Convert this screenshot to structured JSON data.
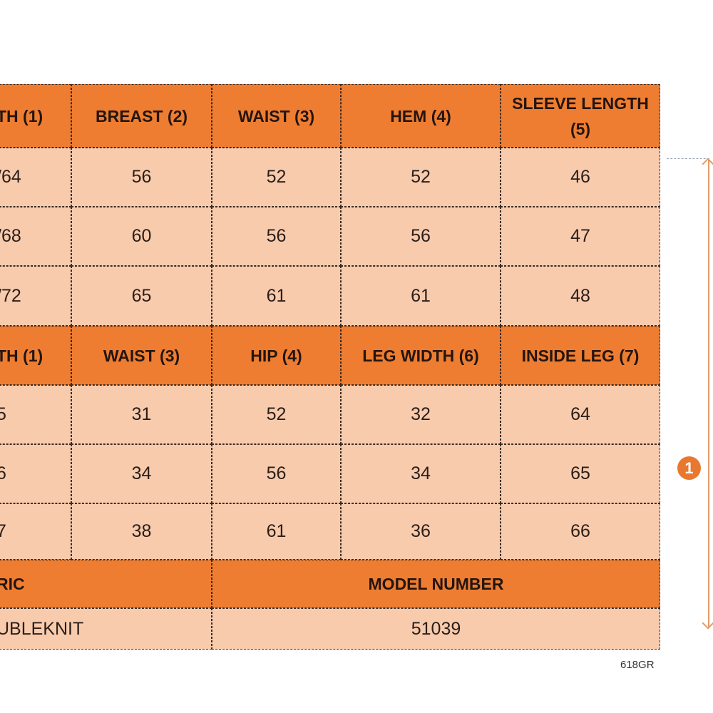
{
  "colors": {
    "header": "#ee7d31",
    "cell": "#f8cbad",
    "border": "#3b2b22",
    "accent": "#e8782f"
  },
  "top_table": {
    "headers": [
      "TH (1)",
      "BREAST (2)",
      "WAIST (3)",
      "HEM (4)",
      "SLEEVE LENGTH (5)"
    ],
    "rows": [
      [
        "/64",
        "56",
        "52",
        "52",
        "46"
      ],
      [
        "/68",
        "60",
        "56",
        "56",
        "47"
      ],
      [
        "/72",
        "65",
        "61",
        "61",
        "48"
      ]
    ]
  },
  "bottom_table": {
    "headers": [
      "TH (1)",
      "WAIST (3)",
      "HIP (4)",
      "LEG WIDTH (6)",
      "INSIDE LEG (7)"
    ],
    "rows": [
      [
        "5",
        "31",
        "52",
        "32",
        "64"
      ],
      [
        "6",
        "34",
        "56",
        "34",
        "65"
      ],
      [
        "7",
        "38",
        "61",
        "36",
        "66"
      ]
    ]
  },
  "info": {
    "fabric_label": "RIC",
    "fabric_value": "UBLEKNIT",
    "model_label": "MODEL NUMBER",
    "model_value": "51039"
  },
  "measure_marker": {
    "badge": "1",
    "icon": "double-arrow-vertical"
  },
  "product_code": "618GR"
}
